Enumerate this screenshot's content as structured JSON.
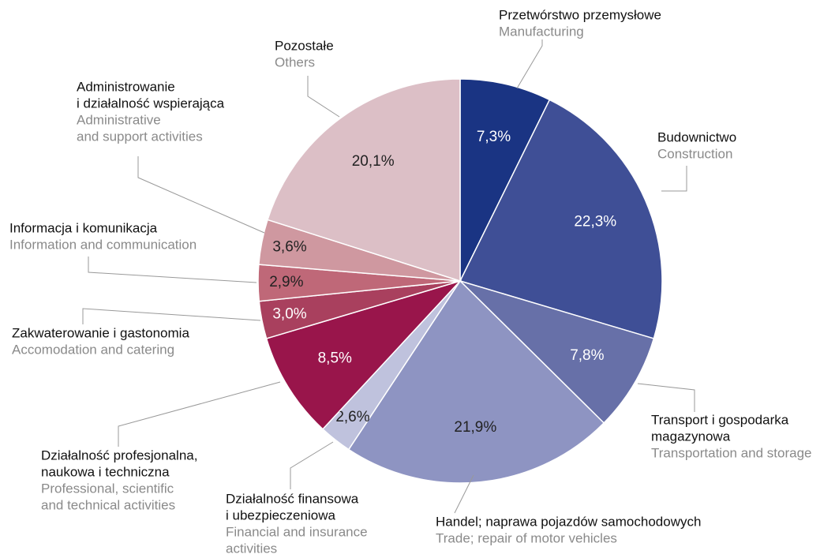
{
  "chart_data": {
    "type": "pie",
    "categories": [
      [
        "Przetwórstwo przemysłowe"
      ],
      [
        "Budownictwo"
      ],
      [
        "Transport i gospodarka",
        "magazynowa"
      ],
      [
        "Handel; naprawa pojazdów samochodowych"
      ],
      [
        "Działalność finansowa",
        "i ubezpieczeniowa"
      ],
      [
        "Działalność profesjonalna,",
        "naukowa i techniczna"
      ],
      [
        "Zakwaterowanie i gastonomia"
      ],
      [
        "Informacja i komunikacja"
      ],
      [
        "Administrowanie",
        "i działalność wspierająca"
      ],
      [
        "Pozostałe"
      ]
    ],
    "categories_en": [
      [
        "Manufacturing"
      ],
      [
        "Construction"
      ],
      [
        "Transportation and storage"
      ],
      [
        "Trade; repair of motor vehicles"
      ],
      [
        "Financial and insurance",
        "activities"
      ],
      [
        "Professional, scientific",
        "and technical activities"
      ],
      [
        "Accomodation and catering"
      ],
      [
        "Information and communication"
      ],
      [
        "Administrative",
        "and support activities"
      ],
      [
        "Others"
      ]
    ],
    "values": [
      7.3,
      22.3,
      7.8,
      21.9,
      2.6,
      8.5,
      3.0,
      2.9,
      3.6,
      20.1
    ],
    "value_labels": [
      "7,3%",
      "22,3%",
      "7,8%",
      "21,9%",
      "2,6%",
      "8,5%",
      "3,0%",
      "2,9%",
      "3,6%",
      "20,1%"
    ],
    "colors": [
      "#1a3483",
      "#3f4f96",
      "#6770a8",
      "#8e94c2",
      "#bfc2dd",
      "#99154b",
      "#a9405e",
      "#bf6878",
      "#cf98a0",
      "#dcbfc6"
    ]
  }
}
